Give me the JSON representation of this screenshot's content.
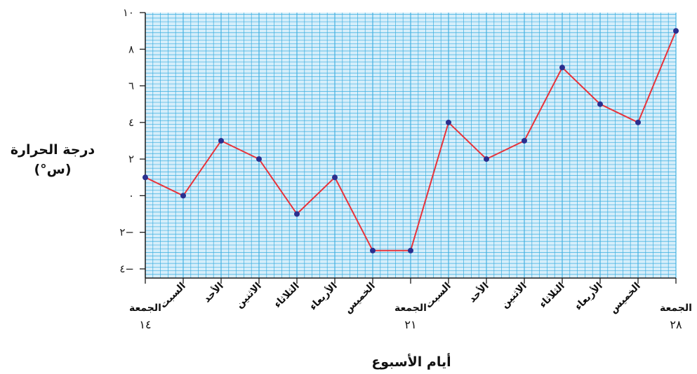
{
  "chart_data": {
    "type": "line",
    "ylabel": [
      "درجة الحرارة",
      "(°س)"
    ],
    "xlabel": "أيام الأسبوع",
    "y_ticks": [
      {
        "value": 10,
        "label": "١٠"
      },
      {
        "value": 8,
        "label": "٨"
      },
      {
        "value": 6,
        "label": "٦"
      },
      {
        "value": 4,
        "label": "٤"
      },
      {
        "value": 2,
        "label": "٢"
      },
      {
        "value": 0,
        "label": "٠"
      },
      {
        "value": -2,
        "label": "٢−"
      },
      {
        "value": -4,
        "label": "٤−"
      }
    ],
    "ylim": [
      -4.5,
      10
    ],
    "grid": true,
    "categories": [
      {
        "day": "الجمعة",
        "date": "١٤"
      },
      {
        "day": "السبت",
        "date": ""
      },
      {
        "day": "الأحد",
        "date": ""
      },
      {
        "day": "الاثنين",
        "date": ""
      },
      {
        "day": "الثلاثاء",
        "date": ""
      },
      {
        "day": "الأربعاء",
        "date": ""
      },
      {
        "day": "الخميس",
        "date": ""
      },
      {
        "day": "الجمعة",
        "date": "٢١"
      },
      {
        "day": "السبت",
        "date": ""
      },
      {
        "day": "الأحد",
        "date": ""
      },
      {
        "day": "الاثنين",
        "date": ""
      },
      {
        "day": "الثلاثاء",
        "date": ""
      },
      {
        "day": "الأربعاء",
        "date": ""
      },
      {
        "day": "الخميس",
        "date": ""
      },
      {
        "day": "الجمعة",
        "date": "٢٨"
      }
    ],
    "values": [
      1,
      0,
      3,
      2,
      -1,
      1,
      -3,
      -3,
      4,
      2,
      3,
      7,
      5,
      4,
      9
    ],
    "colors": {
      "grid": "#3aaee0",
      "grid_background": "#d6eefa",
      "line": "#e8333a",
      "marker": "#2a2f8f"
    }
  }
}
